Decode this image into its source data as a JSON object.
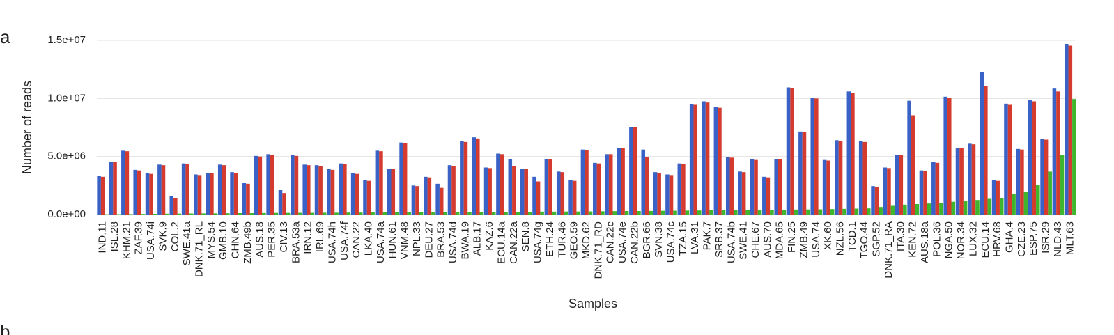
{
  "chart_data": {
    "type": "bar",
    "panel_label": "a",
    "next_panel_label": "b",
    "xlabel": "Samples",
    "ylabel": "Number of reads",
    "categories": [
      "IND.11",
      "ISL.28",
      "KHM.21",
      "ZAF.39",
      "USA.74i",
      "SVK.9",
      "COL.2",
      "SWE.41a",
      "DNK.71_RL",
      "MYS.54",
      "GMB.10",
      "CHN.64",
      "ZMB.49b",
      "AUS.18",
      "PER.35",
      "CIV.13",
      "BRA.53a",
      "IRN.12",
      "IRL.69",
      "USA.74h",
      "USA.74f",
      "CAN.22",
      "LKA.40",
      "USA.74a",
      "HUN.61",
      "VNM.48",
      "NPL.33",
      "DEU.27",
      "BRA.53",
      "USA.74d",
      "BWA.19",
      "ALB.17",
      "KAZ.6",
      "ECU.14a",
      "CAN.22a",
      "SEN.8",
      "USA.74g",
      "ETH.24",
      "TUR.46",
      "GEO.59",
      "MKD.62",
      "DNK.71_RD",
      "CAN.22c",
      "USA.74e",
      "CAN.22b",
      "BGR.66",
      "SVN.38",
      "USA.74c",
      "TZA.15",
      "LVA.31",
      "PAK.7",
      "SRB.37",
      "USA.74b",
      "SWE.41",
      "CHE.67",
      "AUS.70",
      "MDA.65",
      "FIN.25",
      "ZMB.49",
      "USA.74",
      "XK.60",
      "NZL.56",
      "TCD.1",
      "TGO.44",
      "SGP.52",
      "DNK.71_RA",
      "ITA.30",
      "KEN.72",
      "AUS.18a",
      "POL.36",
      "NGA.50",
      "NOR.34",
      "LUX.32",
      "ECU.14",
      "HRV.68",
      "GHA.4",
      "CZE.23",
      "ESP.75",
      "ISR.29",
      "NLD.43",
      "MLT.63"
    ],
    "series": [
      {
        "color": "#3a62c6",
        "values": [
          3300000.0,
          4500000.0,
          5500000.0,
          3850000.0,
          3550000.0,
          4300000.0,
          1600000.0,
          4400000.0,
          3450000.0,
          3600000.0,
          4300000.0,
          3650000.0,
          2700000.0,
          5050000.0,
          5200000.0,
          2100000.0,
          5100000.0,
          4300000.0,
          4250000.0,
          3900000.0,
          4400000.0,
          3550000.0,
          2950000.0,
          5500000.0,
          3950000.0,
          6200000.0,
          2500000.0,
          3250000.0,
          2650000.0,
          4250000.0,
          6300000.0,
          6650000.0,
          4050000.0,
          5250000.0,
          4800000.0,
          3950000.0,
          3250000.0,
          4800000.0,
          3700000.0,
          2950000.0,
          5600000.0,
          4450000.0,
          5200000.0,
          5750000.0,
          7550000.0,
          5600000.0,
          3650000.0,
          3450000.0,
          4400000.0,
          9500000.0,
          9750000.0,
          9300000.0,
          4950000.0,
          3700000.0,
          4750000.0,
          3250000.0,
          4800000.0,
          10950000.0,
          7150000.0,
          10050000.0,
          4700000.0,
          6400000.0,
          10600000.0,
          6300000.0,
          2450000.0,
          4050000.0,
          5150000.0,
          9800000.0,
          3800000.0,
          4500000.0,
          10150000.0,
          5750000.0,
          6100000.0,
          12250000.0,
          2950000.0,
          9550000.0,
          5650000.0,
          9850000.0,
          6500000.0,
          10850000.0,
          14700000.0
        ]
      },
      {
        "color": "#d43a2e",
        "values": [
          3250000.0,
          4500000.0,
          5450000.0,
          3800000.0,
          3500000.0,
          4250000.0,
          1400000.0,
          4350000.0,
          3400000.0,
          3550000.0,
          4250000.0,
          3550000.0,
          2650000.0,
          5000000.0,
          5150000.0,
          1850000.0,
          5050000.0,
          4250000.0,
          4200000.0,
          3850000.0,
          4350000.0,
          3500000.0,
          2900000.0,
          5450000.0,
          3900000.0,
          6150000.0,
          2450000.0,
          3200000.0,
          2300000.0,
          4200000.0,
          6250000.0,
          6550000.0,
          4000000.0,
          5200000.0,
          4150000.0,
          3900000.0,
          2850000.0,
          4750000.0,
          3650000.0,
          2900000.0,
          5550000.0,
          4400000.0,
          5200000.0,
          5700000.0,
          7500000.0,
          4950000.0,
          3600000.0,
          3400000.0,
          4350000.0,
          9450000.0,
          9650000.0,
          9200000.0,
          4900000.0,
          3650000.0,
          4700000.0,
          3200000.0,
          4750000.0,
          10900000.0,
          7100000.0,
          10000000.0,
          4650000.0,
          6300000.0,
          10500000.0,
          6250000.0,
          2400000.0,
          4000000.0,
          5100000.0,
          8550000.0,
          3750000.0,
          4450000.0,
          10050000.0,
          5700000.0,
          6050000.0,
          11100000.0,
          2900000.0,
          9450000.0,
          5600000.0,
          9750000.0,
          6450000.0,
          10600000.0,
          14550000.0
        ]
      },
      {
        "color": "#3fb52e",
        "values": [
          20000.0,
          30000.0,
          40000.0,
          50000.0,
          60000.0,
          70000.0,
          80000.0,
          90000.0,
          100000.0,
          100000.0,
          110000.0,
          120000.0,
          120000.0,
          130000.0,
          140000.0,
          140000.0,
          150000.0,
          150000.0,
          160000.0,
          160000.0,
          170000.0,
          170000.0,
          180000.0,
          180000.0,
          190000.0,
          190000.0,
          200000.0,
          200000.0,
          210000.0,
          210000.0,
          220000.0,
          220000.0,
          230000.0,
          230000.0,
          240000.0,
          240000.0,
          250000.0,
          250000.0,
          260000.0,
          260000.0,
          270000.0,
          280000.0,
          290000.0,
          300000.0,
          300000.0,
          310000.0,
          320000.0,
          330000.0,
          340000.0,
          350000.0,
          360000.0,
          370000.0,
          380000.0,
          390000.0,
          400000.0,
          410000.0,
          420000.0,
          430000.0,
          440000.0,
          450000.0,
          470000.0,
          490000.0,
          510000.0,
          530000.0,
          650000.0,
          750000.0,
          850000.0,
          900000.0,
          950000.0,
          1000000.0,
          1100000.0,
          1150000.0,
          1250000.0,
          1350000.0,
          1400000.0,
          1750000.0,
          1950000.0,
          2550000.0,
          3700000.0,
          5150000.0,
          9950000.0
        ]
      }
    ],
    "ylim": [
      0,
      15000000
    ],
    "yticks": [
      {
        "value": 0,
        "label": "0.0e+00"
      },
      {
        "value": 5000000,
        "label": "5.0e+06"
      },
      {
        "value": 10000000,
        "label": "1.0e+07"
      },
      {
        "value": 15000000,
        "label": "1.5e+07"
      }
    ],
    "grid": true
  }
}
